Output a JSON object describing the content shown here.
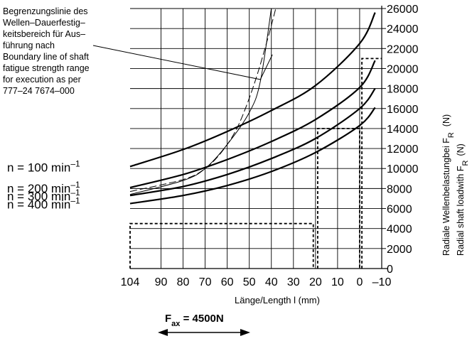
{
  "chart_data": {
    "type": "line",
    "xlabel": "Länge/Length l (mm)",
    "ylabel_line1": "Radiale Wellenbelastungbei F",
    "ylabel_line1_sub": "R",
    "ylabel_line1_unit": "(N)",
    "ylabel_line2": "Radial shaft loadwith F",
    "ylabel_line2_sub": "R",
    "ylabel_line2_unit": "(N)",
    "x_ticks": [
      104,
      90,
      80,
      70,
      60,
      50,
      40,
      30,
      20,
      10,
      0,
      -10
    ],
    "x_tick_labels": [
      "104",
      "90",
      "80",
      "70",
      "60",
      "50",
      "40",
      "30",
      "20",
      "10",
      "0",
      "–10"
    ],
    "xlim": [
      104,
      -10
    ],
    "y_ticks": [
      0,
      2000,
      4000,
      6000,
      8000,
      10000,
      12000,
      14000,
      16000,
      18000,
      20000,
      22000,
      24000,
      26000
    ],
    "y_tick_labels": [
      "0",
      "2000",
      "4000",
      "6000",
      "8000",
      "10000",
      "12000",
      "14000",
      "16000",
      "18000",
      "20000",
      "22000",
      "24000",
      "26000"
    ],
    "ylim": [
      0,
      26000
    ],
    "grid": true,
    "series": [
      {
        "name": "n = 100 min",
        "name_sup": "–1",
        "x": [
          104,
          80,
          60,
          40,
          20,
          0,
          -7
        ],
        "y": [
          10200,
          11900,
          13700,
          15800,
          18300,
          22500,
          25600
        ]
      },
      {
        "name": "n = 200 min",
        "name_sup": "–1",
        "x": [
          104,
          80,
          60,
          40,
          20,
          0,
          -7
        ],
        "y": [
          8100,
          9400,
          10900,
          12700,
          14900,
          18100,
          20800
        ]
      },
      {
        "name": "n = 300 min",
        "name_sup": "–1",
        "x": [
          104,
          80,
          60,
          40,
          20,
          0,
          -7
        ],
        "y": [
          7300,
          8200,
          9400,
          11000,
          13000,
          16000,
          18000
        ]
      },
      {
        "name": "n = 400 min",
        "name_sup": "–1",
        "x": [
          104,
          80,
          60,
          40,
          20,
          0,
          -7
        ],
        "y": [
          6500,
          7300,
          8300,
          9700,
          11600,
          14300,
          16100
        ]
      }
    ],
    "boundary_line": {
      "x": [
        104,
        80,
        70,
        60,
        50,
        45,
        40
      ],
      "y": [
        7400,
        8800,
        10000,
        12400,
        15600,
        18700,
        26000
      ]
    },
    "dashed_curve": {
      "x": [
        104,
        80,
        70,
        62,
        55,
        48,
        42,
        38
      ],
      "y": [
        7700,
        8900,
        10000,
        11800,
        14300,
        18300,
        22700,
        26000
      ]
    },
    "reference_lines": [
      {
        "x": [
          104,
          104,
          21,
          21
        ],
        "y": [
          0,
          4500,
          4500,
          0
        ]
      },
      {
        "x": [
          19,
          19,
          0,
          0
        ],
        "y": [
          0,
          14000,
          14000,
          0
        ]
      },
      {
        "x": [
          -1,
          -1,
          -10
        ],
        "y": [
          0,
          21000,
          21000
        ]
      }
    ],
    "annotation": {
      "lines": [
        "Begrenzungslinie des",
        "Wellen–Dauerfestig–",
        "keitsbereich für Aus–",
        "führung nach",
        "Boundary line of shaft",
        "fatigue strength range",
        "for execution as per",
        "777–24 7674–000"
      ],
      "pointer_target": {
        "x": 45,
        "y": 18900
      }
    },
    "force_label": "F",
    "force_sub": "ax",
    "force_value": " = 4500N"
  }
}
